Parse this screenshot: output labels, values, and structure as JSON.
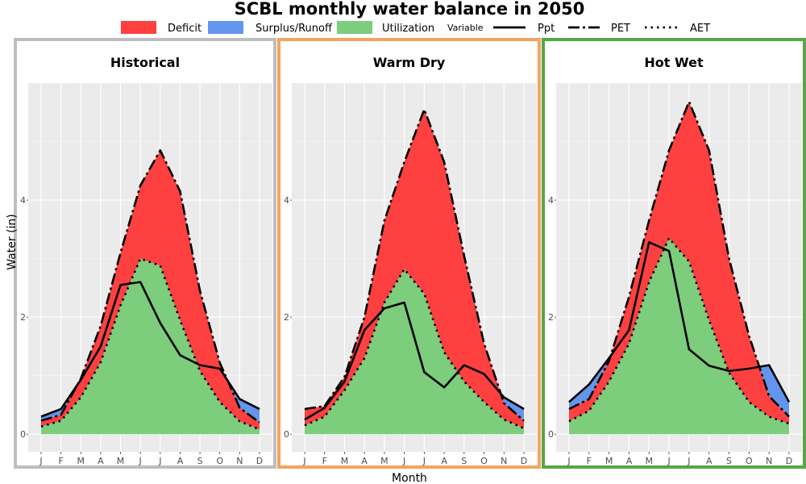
{
  "chart_data": {
    "type": "area",
    "title": "SCBL monthly water balance in 2050",
    "xlabel": "Month",
    "ylabel": "Water (in)",
    "ylim": [
      -0.3,
      6.0
    ],
    "yticks": [
      0,
      2,
      4
    ],
    "grid": true,
    "legend_placement": "top",
    "categories": [
      "J",
      "F",
      "M",
      "A",
      "M",
      "J",
      "J",
      "A",
      "S",
      "O",
      "N",
      "D"
    ],
    "legend": {
      "fill_entries": [
        {
          "name": "Deficit",
          "color": "#ff4040"
        },
        {
          "name": "Surplus/Runoff",
          "color": "#6495ed"
        },
        {
          "name": "Utilization",
          "color": "#7ccd7c"
        }
      ],
      "line_title": "Variable",
      "line_entries": [
        {
          "name": "Ppt",
          "style": "solid"
        },
        {
          "name": "PET",
          "style": "dashdot"
        },
        {
          "name": "AET",
          "style": "dotted"
        }
      ]
    },
    "panels": [
      {
        "title": "Historical",
        "border_color": "#bebebe",
        "series": [
          {
            "name": "Ppt",
            "values": [
              0.3,
              0.43,
              0.93,
              1.5,
              2.55,
              2.6,
              1.9,
              1.35,
              1.18,
              1.12,
              0.6,
              0.43
            ]
          },
          {
            "name": "PET",
            "values": [
              0.23,
              0.33,
              0.95,
              1.85,
              3.1,
              4.25,
              4.85,
              4.15,
              2.45,
              1.22,
              0.45,
              0.2
            ]
          },
          {
            "name": "AET",
            "values": [
              0.13,
              0.23,
              0.63,
              1.23,
              2.2,
              3.0,
              2.88,
              1.95,
              1.08,
              0.55,
              0.22,
              0.08
            ]
          }
        ]
      },
      {
        "title": "Warm Dry",
        "border_color": "#f4a460",
        "series": [
          {
            "name": "Ppt",
            "values": [
              0.25,
              0.45,
              0.9,
              1.78,
              2.15,
              2.25,
              1.06,
              0.8,
              1.18,
              1.03,
              0.63,
              0.43
            ]
          },
          {
            "name": "PET",
            "values": [
              0.43,
              0.48,
              0.98,
              2.0,
              3.65,
              4.65,
              5.55,
              4.65,
              3.05,
              1.55,
              0.53,
              0.23
            ]
          },
          {
            "name": "AET",
            "values": [
              0.15,
              0.3,
              0.75,
              1.3,
              2.25,
              2.82,
              2.4,
              1.4,
              0.9,
              0.55,
              0.25,
              0.1
            ]
          }
        ]
      },
      {
        "title": "Hot Wet",
        "border_color": "#55a845",
        "series": [
          {
            "name": "Ppt",
            "values": [
              0.55,
              0.85,
              1.3,
              1.78,
              3.28,
              3.13,
              1.45,
              1.17,
              1.08,
              1.12,
              1.18,
              0.55
            ]
          },
          {
            "name": "PET",
            "values": [
              0.43,
              0.6,
              1.25,
              2.35,
              3.65,
              4.85,
              5.68,
              4.85,
              3.0,
              1.68,
              0.65,
              0.3
            ]
          },
          {
            "name": "AET",
            "values": [
              0.22,
              0.4,
              0.9,
              1.55,
              2.6,
              3.35,
              2.95,
              1.95,
              1.05,
              0.55,
              0.3,
              0.18
            ]
          }
        ]
      }
    ]
  }
}
